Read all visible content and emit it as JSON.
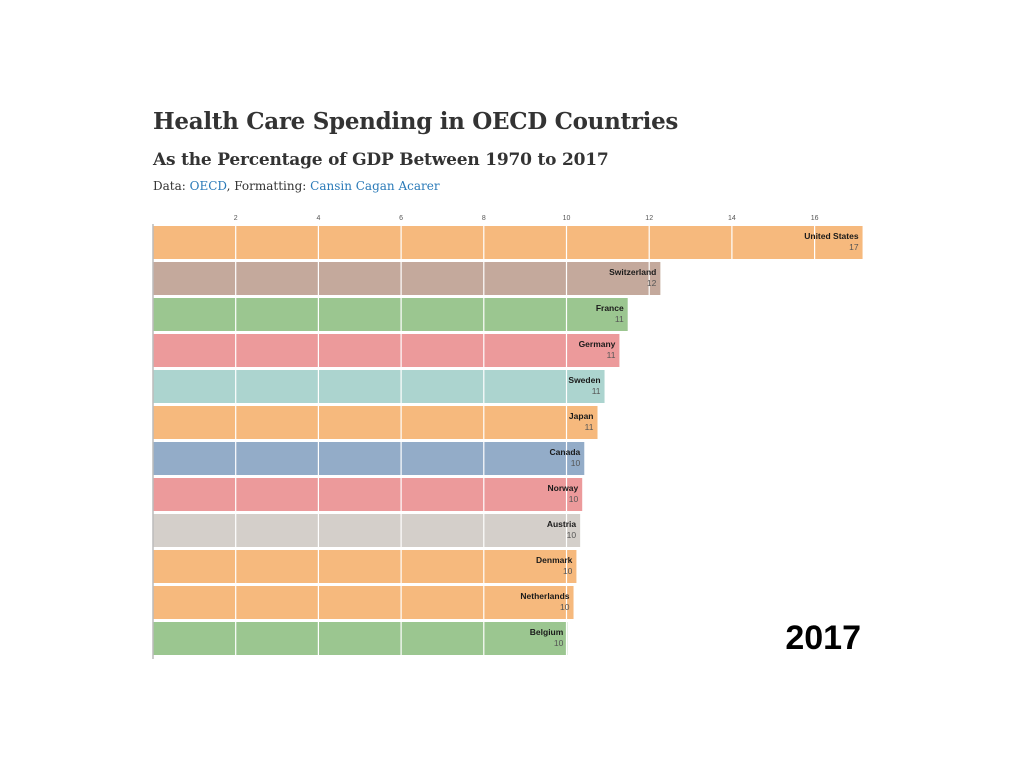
{
  "header": {
    "title": "Health Care Spending in OECD Countries",
    "subtitle": "As the Percentage of GDP Between 1970 to 2017",
    "source_prefix": "Data: ",
    "source_link": "OECD",
    "formatting_prefix": ", Formatting: ",
    "formatting_link": "Cansin Cagan Acarer"
  },
  "chart_data": {
    "type": "bar",
    "orientation": "horizontal",
    "title": "Health Care Spending in OECD Countries",
    "subtitle": "As the Percentage of GDP Between 1970 to 2017",
    "xlabel": "",
    "ylabel": "",
    "xlim": [
      0,
      17.2
    ],
    "xticks": [
      2,
      4,
      6,
      8,
      10,
      12,
      14,
      16
    ],
    "grid": true,
    "axis_position": "top",
    "year": "2017",
    "categories": [
      "United States",
      "Switzerland",
      "France",
      "Germany",
      "Sweden",
      "Japan",
      "Canada",
      "Norway",
      "Austria",
      "Denmark",
      "Netherlands",
      "Belgium"
    ],
    "values": [
      17.16,
      12.27,
      11.48,
      11.28,
      10.92,
      10.75,
      10.43,
      10.38,
      10.33,
      10.24,
      10.17,
      10.02
    ],
    "value_labels": [
      "17",
      "12",
      "11",
      "11",
      "11",
      "11",
      "10",
      "10",
      "10",
      "10",
      "10",
      "10"
    ],
    "colors": [
      "#f6b97d",
      "#c4a99c",
      "#9bc690",
      "#ec9a9b",
      "#acd4cf",
      "#f6b97d",
      "#93acc8",
      "#ec9a9b",
      "#d4cfca",
      "#f6b97d",
      "#f6b97d",
      "#9bc690"
    ]
  }
}
